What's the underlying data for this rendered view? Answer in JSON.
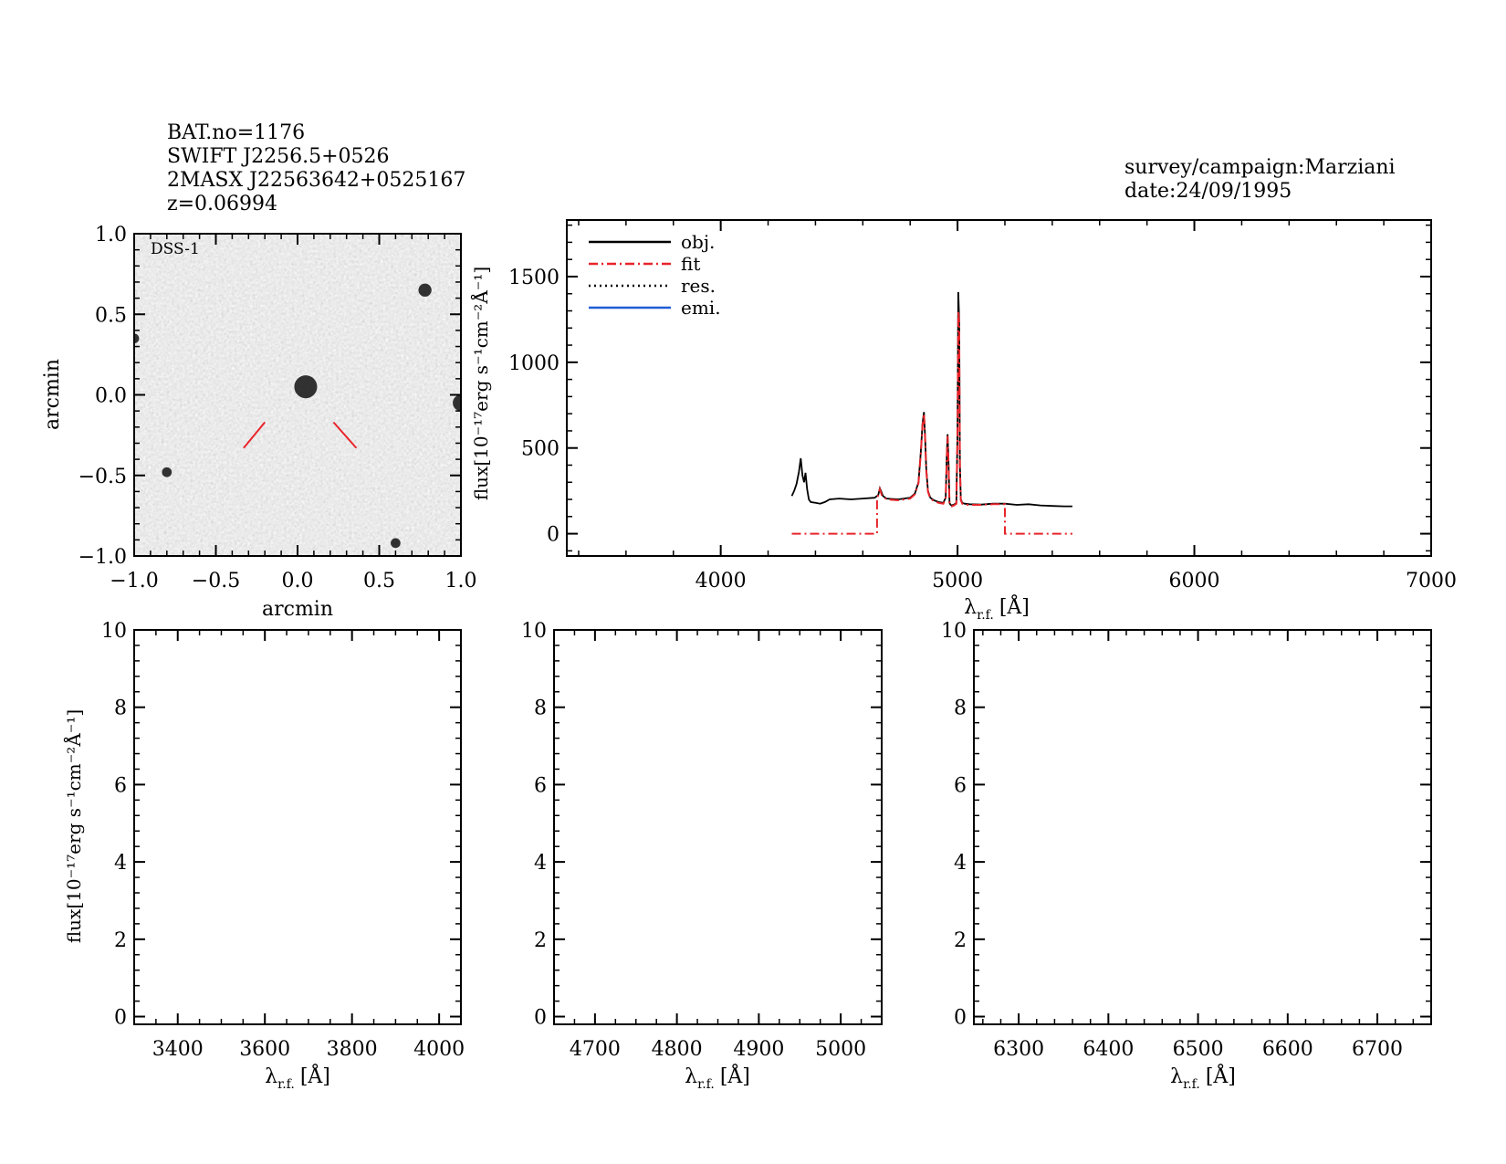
{
  "header": {
    "bat_no": "BAT.no=1176",
    "swift_name": "SWIFT J2256.5+0526",
    "twomass_name": "2MASX J22563642+0525167",
    "redshift": "z=0.06994",
    "survey": "survey/campaign:Marziani",
    "date": "date:24/09/1995"
  },
  "image_panel": {
    "label": "DSS-1",
    "xlabel": "arcmin",
    "ylabel": "arcmin",
    "xlim": [
      -1.0,
      1.0
    ],
    "ylim": [
      -1.0,
      1.0
    ],
    "xticks": [
      "−1.0",
      "−0.5",
      "0.0",
      "0.5",
      "1.0"
    ],
    "yticks": [
      "−1.0",
      "−0.5",
      "0.0",
      "0.5",
      "1.0"
    ],
    "marker_color": "#e8242a",
    "sources": [
      {
        "x": 0.05,
        "y": 0.05,
        "size": 0.07
      },
      {
        "x": 0.78,
        "y": 0.65,
        "size": 0.04
      },
      {
        "x": 1.0,
        "y": -0.05,
        "size": 0.05
      },
      {
        "x": -0.8,
        "y": -0.48,
        "size": 0.03
      },
      {
        "x": 0.6,
        "y": -0.92,
        "size": 0.03
      },
      {
        "x": -1.0,
        "y": 0.35,
        "size": 0.03
      }
    ]
  },
  "chart_data": [
    {
      "type": "line",
      "id": "main-spectrum",
      "xlabel_main": "λ",
      "xlabel_sub": "r.f.",
      "xlabel_unit": "[Å]",
      "ylabel": "flux[10⁻¹⁷erg s⁻¹cm⁻²Å⁻¹]",
      "xlim": [
        3350,
        7000
      ],
      "ylim": [
        -130,
        1830
      ],
      "xticks": [
        4000,
        5000,
        6000,
        7000
      ],
      "yticks": [
        0,
        500,
        1000,
        1500
      ],
      "legend_position": "top-left",
      "legend": [
        {
          "label": "obj.",
          "color": "#000000",
          "dash": "solid"
        },
        {
          "label": "fit",
          "color": "#e8242a",
          "dash": "dashdot"
        },
        {
          "label": "res.",
          "color": "#000000",
          "dash": "dotted"
        },
        {
          "label": "emi.",
          "color": "#1f5fd6",
          "dash": "solid"
        }
      ],
      "series": [
        {
          "name": "obj.",
          "color": "#000000",
          "x": [
            4300,
            4310,
            4320,
            4330,
            4338,
            4345,
            4352,
            4358,
            4365,
            4372,
            4380,
            4400,
            4420,
            4440,
            4460,
            4500,
            4550,
            4600,
            4650,
            4665,
            4672,
            4678,
            4685,
            4700,
            4750,
            4800,
            4820,
            4835,
            4845,
            4852,
            4858,
            4863,
            4868,
            4875,
            4885,
            4900,
            4920,
            4940,
            4950,
            4955,
            4958,
            4962,
            4966,
            4970,
            4975,
            4985,
            4995,
            5000,
            5003,
            5007,
            5010,
            5014,
            5020,
            5030,
            5050,
            5100,
            5150,
            5200,
            5250,
            5300,
            5350,
            5400,
            5450,
            5485
          ],
          "y": [
            220,
            250,
            290,
            360,
            440,
            340,
            300,
            355,
            260,
            200,
            185,
            180,
            175,
            185,
            200,
            205,
            200,
            205,
            210,
            225,
            265,
            245,
            220,
            205,
            200,
            210,
            235,
            300,
            480,
            640,
            710,
            560,
            380,
            250,
            210,
            195,
            185,
            180,
            210,
            470,
            580,
            420,
            180,
            170,
            165,
            170,
            180,
            600,
            1410,
            1250,
            400,
            200,
            180,
            175,
            172,
            170,
            175,
            175,
            168,
            172,
            165,
            162,
            160,
            160
          ]
        },
        {
          "name": "fit",
          "color": "#e8242a",
          "x": [
            4300,
            4660,
            4660,
            4672,
            4680,
            4700,
            4750,
            4800,
            4820,
            4835,
            4845,
            4852,
            4858,
            4863,
            4868,
            4875,
            4885,
            4900,
            4920,
            4940,
            4950,
            4955,
            4958,
            4962,
            4966,
            4970,
            4975,
            4985,
            4995,
            5000,
            5003,
            5007,
            5010,
            5014,
            5020,
            5030,
            5050,
            5100,
            5150,
            5200,
            5200,
            5485
          ],
          "y": [
            0,
            0,
            200,
            260,
            225,
            200,
            195,
            205,
            230,
            295,
            470,
            630,
            700,
            550,
            370,
            245,
            205,
            190,
            180,
            175,
            205,
            460,
            570,
            410,
            175,
            165,
            160,
            165,
            175,
            590,
            1300,
            1230,
            390,
            195,
            175,
            170,
            168,
            168,
            172,
            172,
            0,
            0
          ]
        }
      ]
    },
    {
      "type": "line",
      "id": "zoom-left",
      "xlabel_main": "λ",
      "xlabel_sub": "r.f.",
      "xlabel_unit": "[Å]",
      "ylabel": "flux[10⁻¹⁷erg s⁻¹cm⁻²Å⁻¹]",
      "xlim": [
        3300,
        4050
      ],
      "ylim": [
        -0.2,
        10
      ],
      "xticks": [
        3400,
        3600,
        3800,
        4000
      ],
      "yticks": [
        0,
        2,
        4,
        6,
        8,
        10
      ],
      "series": []
    },
    {
      "type": "line",
      "id": "zoom-middle",
      "xlabel_main": "λ",
      "xlabel_sub": "r.f.",
      "xlabel_unit": "[Å]",
      "xlim": [
        4650,
        5050
      ],
      "ylim": [
        -0.2,
        10
      ],
      "xticks": [
        4700,
        4800,
        4900,
        5000
      ],
      "yticks": [
        0,
        2,
        4,
        6,
        8,
        10
      ],
      "series": []
    },
    {
      "type": "line",
      "id": "zoom-right",
      "xlabel_main": "λ",
      "xlabel_sub": "r.f.",
      "xlabel_unit": "[Å]",
      "xlim": [
        6250,
        6760
      ],
      "ylim": [
        -0.2,
        10
      ],
      "xticks": [
        6300,
        6400,
        6500,
        6600,
        6700
      ],
      "yticks": [
        0,
        2,
        4,
        6,
        8,
        10
      ],
      "series": []
    }
  ]
}
